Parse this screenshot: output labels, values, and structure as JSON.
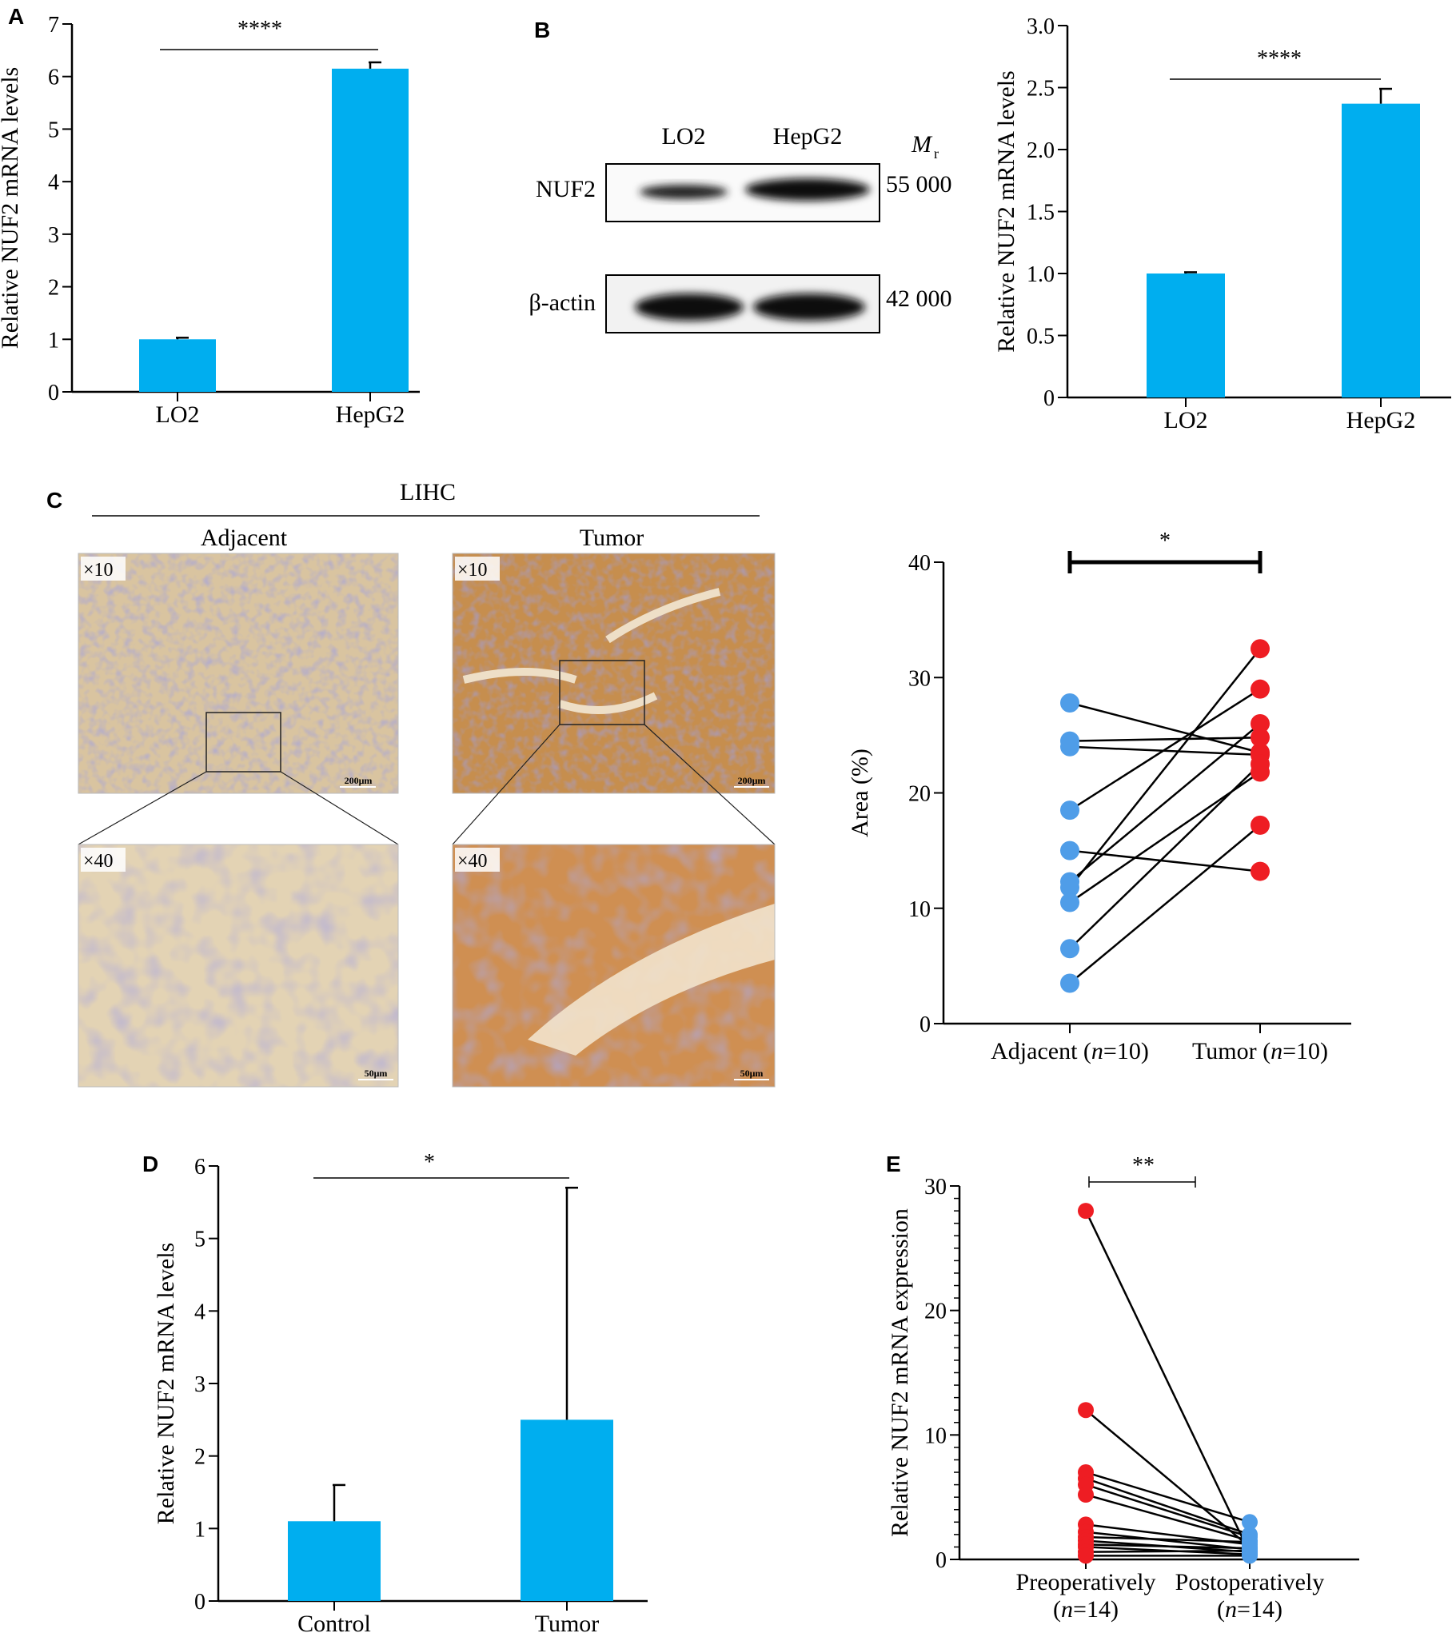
{
  "colors": {
    "bar": "#00AEEF",
    "red": "#EE1D23",
    "blue": "#4F9DE8",
    "black": "#000000",
    "tissue_light": "#D6BE94",
    "tissue_tumor": "#C9914E"
  },
  "chart_data": [
    {
      "id": "A",
      "type": "bar",
      "panel": "A",
      "categories": [
        "LO2",
        "HepG2"
      ],
      "values": [
        1.0,
        6.15
      ],
      "errors": [
        0.03,
        0.12
      ],
      "ylabel": "Relative NUF2 mRNA levels",
      "ylim": [
        0,
        7
      ],
      "yticks": [
        "0",
        "1",
        "2",
        "3",
        "4",
        "5",
        "6",
        "7"
      ],
      "significance": "****"
    },
    {
      "id": "B",
      "type": "bar",
      "panel": "B",
      "categories": [
        "LO2",
        "HepG2"
      ],
      "values": [
        1.0,
        2.37
      ],
      "errors": [
        0.01,
        0.12
      ],
      "ylabel": "Relative NUF2 mRNA levels",
      "ylim": [
        0,
        3.0
      ],
      "yticks": [
        "0",
        "0.5",
        "1.0",
        "1.5",
        "2.0",
        "2.5",
        "3.0"
      ],
      "significance": "****"
    },
    {
      "id": "C",
      "type": "scatter",
      "panel": "C",
      "categories": [
        "Adjacent (n=10)",
        "Tumor (n=10)"
      ],
      "pairs": [
        [
          27.8,
          23.5
        ],
        [
          24.5,
          24.8
        ],
        [
          24.0,
          23.3
        ],
        [
          18.5,
          29.0
        ],
        [
          15.0,
          13.2
        ],
        [
          12.3,
          26.0
        ],
        [
          11.8,
          32.5
        ],
        [
          10.5,
          21.8
        ],
        [
          6.5,
          22.5
        ],
        [
          3.5,
          17.2
        ]
      ],
      "ylabel": "Area (%)",
      "ylim": [
        0,
        40
      ],
      "yticks": [
        "0",
        "10",
        "20",
        "30",
        "40"
      ],
      "significance": "*"
    },
    {
      "id": "D",
      "type": "bar",
      "panel": "D",
      "categories": [
        "Control",
        "Tumor"
      ],
      "values": [
        1.1,
        2.5
      ],
      "errors": [
        0.5,
        3.2
      ],
      "ylabel": "Relative NUF2 mRNA levels",
      "ylim": [
        0,
        6
      ],
      "yticks": [
        "0",
        "1",
        "2",
        "3",
        "4",
        "5",
        "6"
      ],
      "significance": "*"
    },
    {
      "id": "E",
      "type": "scatter",
      "panel": "E",
      "categories": [
        "Preoperatively (n=14)",
        "Postoperatively (n=14)"
      ],
      "pairs": [
        [
          28.0,
          0.5
        ],
        [
          12.0,
          1.0
        ],
        [
          7.0,
          3.0
        ],
        [
          6.5,
          2.0
        ],
        [
          6.0,
          1.8
        ],
        [
          5.2,
          1.5
        ],
        [
          2.8,
          1.2
        ],
        [
          2.2,
          0.8
        ],
        [
          1.8,
          1.4
        ],
        [
          1.5,
          0.6
        ],
        [
          1.2,
          0.9
        ],
        [
          1.0,
          0.4
        ],
        [
          0.6,
          0.7
        ],
        [
          0.3,
          0.3
        ]
      ],
      "ylabel": "Relative NUF2 mRNA expression",
      "ylim": [
        0,
        30
      ],
      "yticks": [
        "0",
        "10",
        "20",
        "30"
      ],
      "significance": "**"
    }
  ],
  "panels": {
    "A": "A",
    "B": "B",
    "C": "C",
    "D": "D",
    "E": "E"
  },
  "blot": {
    "lanes": [
      "LO2",
      "HepG2"
    ],
    "mr_label": "M",
    "mr_sub": "r",
    "rows": [
      {
        "name": "NUF2",
        "mw": "55 000"
      },
      {
        "name": "β-actin",
        "mw": "42 000"
      }
    ]
  },
  "ihc": {
    "title": "LIHC",
    "columns": [
      "Adjacent",
      "Tumor"
    ],
    "mag_low": "×10",
    "mag_high": "×40",
    "scale_low": "200μm",
    "scale_high": "50μm"
  },
  "x_labels": {
    "C": [
      {
        "pre": "Adjacent (",
        "n": "n",
        "post": "=10)"
      },
      {
        "pre": "Tumor (",
        "n": "n",
        "post": "=10)"
      }
    ],
    "E": [
      {
        "line1": "Preoperatively",
        "pre": "(",
        "n": "n",
        "post": "=14)"
      },
      {
        "line1": "Postoperatively",
        "pre": "(",
        "n": "n",
        "post": "=14)"
      }
    ]
  }
}
